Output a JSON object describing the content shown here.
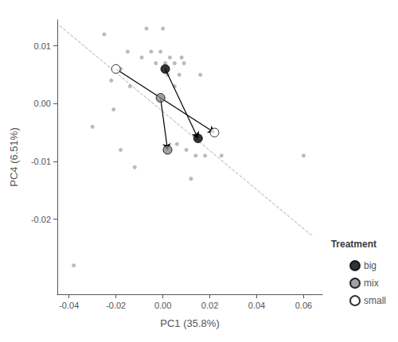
{
  "chart_data": {
    "type": "scatter",
    "xlabel": "PC1 (35.8%)",
    "ylabel": "PC4 (6.51%)",
    "xlim": [
      -0.045,
      0.068
    ],
    "ylim": [
      -0.033,
      0.0145
    ],
    "xticks": [
      -0.04,
      -0.02,
      {
        "value": 0,
        "label": "0.00"
      },
      0.02,
      0.04,
      0.06
    ],
    "yticks": [
      -0.02,
      -0.01,
      {
        "value": 0,
        "label": "0.00"
      },
      0.01
    ],
    "grid": false,
    "legend": "lower right",
    "legend_title": "Treatment",
    "series": [
      {
        "type": "scatter",
        "color": "#aaaaaa",
        "marker": "circle",
        "values": [
          [
            -0.038,
            -0.028
          ],
          [
            -0.03,
            -0.004
          ],
          [
            -0.025,
            0.012
          ],
          [
            -0.022,
            0.004
          ],
          [
            -0.021,
            -0.001
          ],
          [
            -0.018,
            0.006
          ],
          [
            -0.018,
            -0.008
          ],
          [
            -0.015,
            0.009
          ],
          [
            -0.014,
            0.003
          ],
          [
            -0.012,
            -0.011
          ],
          [
            -0.009,
            0.008
          ],
          [
            -0.007,
            0.013
          ],
          [
            -0.005,
            0.009
          ],
          [
            -0.003,
            0.007
          ],
          [
            -0.001,
            0.009
          ],
          [
            0.0,
            0.013
          ],
          [
            0.001,
            0.007
          ],
          [
            0.002,
            0.005
          ],
          [
            0.003,
            0.008
          ],
          [
            0.005,
            0.007
          ],
          [
            0.005,
            0.003
          ],
          [
            0.006,
            -0.007
          ],
          [
            0.007,
            0.005
          ],
          [
            0.008,
            0.008
          ],
          [
            0.009,
            0.007
          ],
          [
            0.01,
            -0.008
          ],
          [
            0.012,
            -0.013
          ],
          [
            0.014,
            -0.009
          ],
          [
            0.016,
            0.005
          ],
          [
            0.018,
            -0.009
          ],
          [
            0.025,
            -0.009
          ],
          [
            0.06,
            -0.009
          ]
        ]
      },
      {
        "type": "line",
        "color": "#aaaaaa",
        "line_style": "dashed",
        "values": [
          [
            -0.044,
            0.0135
          ],
          [
            0.064,
            -0.023
          ]
        ]
      },
      {
        "name": "big",
        "type": "arrow",
        "color": "#000000",
        "marker": "circle",
        "values": [
          [
            0.001,
            0.006
          ],
          [
            0.015,
            -0.006
          ]
        ]
      },
      {
        "name": "mix",
        "type": "arrow",
        "color": "#888888",
        "marker": "circle",
        "values": [
          [
            -0.001,
            0.001
          ],
          [
            0.002,
            -0.008
          ]
        ]
      },
      {
        "name": "small",
        "type": "arrow",
        "color": "#ffffff",
        "marker": "circle",
        "values": [
          [
            -0.02,
            0.006
          ],
          [
            0.022,
            -0.005
          ]
        ]
      }
    ]
  }
}
